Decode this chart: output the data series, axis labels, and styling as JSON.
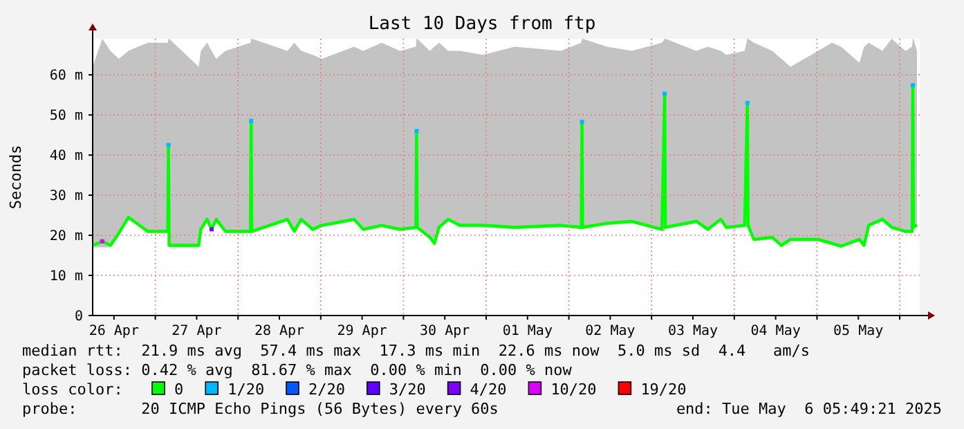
{
  "chart_data": {
    "type": "line",
    "title": "Last 10 Days from ftp",
    "ylabel": "Seconds",
    "legend_title": "loss color:",
    "legend": "bottom",
    "grid": true,
    "marker": "none",
    "line_style": "solid",
    "xlim": [
      "2025-04-26T05:49",
      "2025-05-06T05:49"
    ],
    "xticks": [
      {
        "value": "2025-04-26T12:00",
        "label": "26 Apr"
      },
      {
        "value": "2025-04-27T12:00",
        "label": "27 Apr"
      },
      {
        "value": "2025-04-28T12:00",
        "label": "28 Apr"
      },
      {
        "value": "2025-04-29T12:00",
        "label": "29 Apr"
      },
      {
        "value": "2025-04-30T12:00",
        "label": "30 Apr"
      },
      {
        "value": "2025-05-01T12:00",
        "label": "01 May"
      },
      {
        "value": "2025-05-02T12:00",
        "label": "02 May"
      },
      {
        "value": "2025-05-03T12:00",
        "label": "03 May"
      },
      {
        "value": "2025-05-04T12:00",
        "label": "04 May"
      },
      {
        "value": "2025-05-05T12:00",
        "label": "05 May"
      },
      {
        "value": "2025-04-27T00:00",
        "label": null
      },
      {
        "value": "2025-04-28T00:00",
        "label": null
      },
      {
        "value": "2025-04-29T00:00",
        "label": null
      },
      {
        "value": "2025-04-30T00:00",
        "label": null
      },
      {
        "value": "2025-05-01T00:00",
        "label": null
      },
      {
        "value": "2025-05-02T00:00",
        "label": null
      },
      {
        "value": "2025-05-03T00:00",
        "label": null
      },
      {
        "value": "2025-05-04T00:00",
        "label": null
      },
      {
        "value": "2025-05-05T00:00",
        "label": null
      },
      {
        "value": "2025-05-06T00:00",
        "label": null
      }
    ],
    "ylim": [
      0,
      69
    ],
    "yticks": [
      0,
      {
        "value": 10,
        "label": "10 m"
      },
      {
        "value": 20,
        "label": "20 m"
      },
      {
        "value": 30,
        "label": "30 m"
      },
      {
        "value": 40,
        "label": "40 m"
      },
      {
        "value": 50,
        "label": "50 m"
      },
      {
        "value": 60,
        "label": "60 m"
      }
    ],
    "series": [
      {
        "name": "0",
        "color": "#00ff00",
        "x": [
          "2025-04-26T05:50",
          "2025-04-26T08:36",
          "2025-04-26T11:00",
          "2025-04-26T13:24",
          "2025-04-26T16:12",
          "2025-04-26T21:48",
          "2025-04-27T03:36",
          "2025-04-27T03:48",
          "2025-04-27T04:00",
          "2025-04-27T12:36",
          "2025-04-27T13:12",
          "2025-04-27T15:00",
          "2025-04-27T16:20",
          "2025-04-27T17:40",
          "2025-04-27T20:20",
          "2025-04-28T03:36",
          "2025-04-28T03:48",
          "2025-04-28T04:00",
          "2025-04-28T14:20",
          "2025-04-28T16:20",
          "2025-04-28T18:20",
          "2025-04-28T21:40",
          "2025-04-29T00:20",
          "2025-04-29T09:40",
          "2025-04-29T12:20",
          "2025-04-29T17:40",
          "2025-04-29T23:00",
          "2025-04-30T03:36",
          "2025-04-30T03:48",
          "2025-04-30T04:00",
          "2025-04-30T07:40",
          "2025-04-30T09:00",
          "2025-04-30T10:20",
          "2025-04-30T13:00",
          "2025-04-30T16:20",
          "2025-04-30T23:00",
          "2025-05-01T08:20",
          "2025-05-01T21:40",
          "2025-05-02T03:36",
          "2025-05-02T03:48",
          "2025-05-02T04:00",
          "2025-05-02T11:00",
          "2025-05-02T18:20",
          "2025-05-03T03:00",
          "2025-05-03T03:48",
          "2025-05-03T04:00",
          "2025-05-03T13:00",
          "2025-05-03T16:20",
          "2025-05-03T20:05",
          "2025-05-03T21:40",
          "2025-05-04T03:00",
          "2025-05-04T03:48",
          "2025-05-04T04:00",
          "2025-05-04T05:40",
          "2025-05-04T11:00",
          "2025-05-04T13:40",
          "2025-05-04T16:20",
          "2025-05-05T00:20",
          "2025-05-05T04:20",
          "2025-05-05T07:00",
          "2025-05-05T12:20",
          "2025-05-05T13:40",
          "2025-05-05T15:00",
          "2025-05-05T19:00",
          "2025-05-05T21:40",
          "2025-05-06T01:40",
          "2025-05-06T03:36",
          "2025-05-06T03:48",
          "2025-05-06T04:00",
          "2025-05-06T05:00"
        ],
        "values": [
          17.5,
          18.5,
          17.5,
          20.5,
          24.5,
          21,
          21,
          42.5,
          17.5,
          17.5,
          21.5,
          24,
          21.5,
          24,
          21,
          21,
          48.5,
          21,
          24,
          21,
          24,
          21.5,
          22.5,
          24,
          21.5,
          22.5,
          21.5,
          22,
          46,
          22,
          19.5,
          18,
          22,
          24,
          22.5,
          22.5,
          22,
          22.5,
          22,
          48.3,
          22,
          23,
          23.5,
          21.5,
          55.3,
          22,
          23.5,
          21.5,
          24,
          22,
          22.5,
          53,
          22.5,
          19,
          19.5,
          17.5,
          19,
          19,
          18,
          17.3,
          19,
          17.5,
          22.5,
          24,
          22,
          21,
          21,
          57.4,
          22,
          22.6
        ],
        "lower": [
          17,
          17,
          17,
          20,
          24,
          20.5,
          20.5,
          20.5,
          17,
          17,
          21,
          23.5,
          21,
          23.5,
          20.5,
          20.5,
          20.5,
          20.5,
          23.5,
          20.5,
          23.5,
          21,
          22,
          23.5,
          21,
          22,
          21,
          21.5,
          21.5,
          21.5,
          19,
          17.5,
          21.5,
          23.5,
          22,
          22,
          21.5,
          22,
          21.5,
          21.5,
          21.5,
          22.5,
          23,
          21,
          21,
          21.5,
          23,
          21,
          23.5,
          21.5,
          22,
          22,
          22,
          18.5,
          19,
          17,
          18.5,
          18.5,
          17.5,
          17,
          18.5,
          17,
          22,
          23.5,
          21.5,
          20.5,
          20.5,
          20.5,
          21.5,
          22
        ],
        "upper": [
          62,
          69,
          66,
          64,
          66,
          68,
          68,
          69,
          69,
          62,
          66,
          68,
          66,
          64,
          66,
          68,
          69,
          69,
          66,
          68,
          66,
          65,
          64,
          67,
          66,
          68,
          66,
          67,
          69,
          69,
          66,
          67,
          68,
          66,
          66,
          65,
          67,
          66,
          68,
          69,
          69,
          67,
          66,
          68,
          69,
          69,
          66,
          67,
          66,
          65,
          66,
          69,
          69,
          68,
          66,
          64,
          62,
          66,
          68,
          67,
          63,
          67,
          68,
          66,
          69,
          66,
          67,
          69,
          69,
          66
        ]
      },
      {
        "name": "1/20",
        "type": "scatter",
        "marker": "square",
        "color": "#00b8ff",
        "x": [
          "2025-04-27T03:48",
          "2025-04-28T03:48",
          "2025-04-30T03:48",
          "2025-05-02T03:48",
          "2025-05-03T03:48",
          "2025-05-04T03:48",
          "2025-05-06T03:48"
        ],
        "values": [
          42.5,
          48.5,
          46,
          48.3,
          55.3,
          53,
          57.4
        ]
      },
      {
        "name": "2/20",
        "type": "scatter",
        "marker": "square",
        "color": "#0059ff"
      },
      {
        "name": "3/20",
        "type": "scatter",
        "marker": "square",
        "color": "#5e00ff"
      },
      {
        "name": "4/20",
        "type": "scatter",
        "marker": "square",
        "color": "#7e00ff",
        "x": [
          "2025-04-27T16:20"
        ],
        "values": [
          21.5
        ]
      },
      {
        "name": "10/20",
        "type": "scatter",
        "marker": "square",
        "color": "#dd00ff",
        "x": [
          "2025-04-26T08:36"
        ],
        "values": [
          18.5
        ]
      },
      {
        "name": "19/20",
        "type": "scatter",
        "marker": "square",
        "color": "#ff0000"
      }
    ],
    "annotations": [
      "median rtt:  21.9 ms avg  57.4 ms max  17.3 ms min  22.6 ms now  5.0 ms sd  4.4   am/s",
      "packet loss: 0.42 % avg  81.67 % max  0.00 % min  0.00 % now",
      "probe:       20 ICMP Echo Pings (56 Bytes) every 60s",
      "end: Tue May  6 05:49:21 2025"
    ]
  }
}
